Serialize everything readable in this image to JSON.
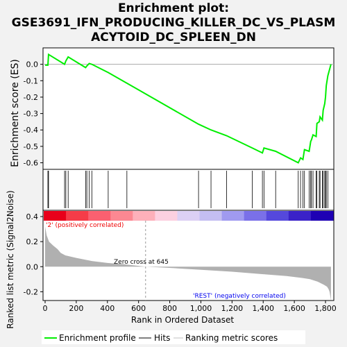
{
  "chart_data": {
    "type": "line",
    "title_lines": [
      "Enrichment plot:",
      "GSE3691_IFN_PRODUCING_KILLER_DC_VS_PLASM",
      "ACYTOID_DC_SPLEEN_DN"
    ],
    "top_panel": {
      "ylabel": "Enrichment score (ES)",
      "ylim": [
        -0.64,
        0.1
      ],
      "yticks": [
        "0.0",
        "-0.1",
        "-0.2",
        "-0.3",
        "-0.4",
        "-0.5",
        "-0.6"
      ],
      "yvalues": [
        0.0,
        -0.1,
        -0.2,
        -0.3,
        -0.4,
        -0.5,
        -0.6
      ],
      "series": [
        {
          "name": "Enrichment profile",
          "color": "#00ee00",
          "x": [
            0,
            18,
            22,
            125,
            133,
            148,
            260,
            268,
            283,
            300,
            405,
            525,
            985,
            1065,
            1165,
            1330,
            1395,
            1405,
            1480,
            1625,
            1640,
            1655,
            1665,
            1695,
            1705,
            1710,
            1720,
            1740,
            1745,
            1760,
            1765,
            1780,
            1785,
            1795,
            1800,
            1805,
            1815,
            1835
          ],
          "y": [
            -0.005,
            -0.005,
            0.06,
            0.0,
            0.02,
            0.045,
            -0.02,
            -0.01,
            0.005,
            0.0,
            -0.05,
            -0.115,
            -0.365,
            -0.4,
            -0.435,
            -0.51,
            -0.54,
            -0.51,
            -0.53,
            -0.6,
            -0.57,
            -0.58,
            -0.52,
            -0.53,
            -0.47,
            -0.46,
            -0.43,
            -0.44,
            -0.36,
            -0.35,
            -0.32,
            -0.34,
            -0.28,
            -0.24,
            -0.2,
            -0.13,
            -0.07,
            0.0
          ]
        }
      ]
    },
    "hits": {
      "color": "#000000",
      "x": [
        18,
        22,
        125,
        133,
        148,
        260,
        268,
        283,
        300,
        405,
        525,
        985,
        1065,
        1165,
        1330,
        1395,
        1405,
        1480,
        1625,
        1640,
        1655,
        1665,
        1695,
        1705,
        1710,
        1720,
        1740,
        1745,
        1760,
        1765,
        1780,
        1785,
        1795,
        1800,
        1805,
        1815
      ]
    },
    "bottom_panel": {
      "ylabel": "Ranked list metric (Signal2Noise)",
      "xlabel": "Rank in Ordered Dataset",
      "ylim": [
        -0.27,
        0.45
      ],
      "yticks": [
        "0.4",
        "0.2",
        "0.0",
        "-0.2"
      ],
      "yvalues": [
        0.4,
        0.2,
        0.0,
        -0.2
      ],
      "xticks": [
        "0",
        "200",
        "400",
        "600",
        "800",
        "1,000",
        "1,200",
        "1,400",
        "1,600",
        "1,800"
      ],
      "xvalues": [
        0,
        200,
        400,
        600,
        800,
        1000,
        1200,
        1400,
        1600,
        1800
      ],
      "xlim": [
        0,
        1840
      ],
      "metric_x": [
        0,
        10,
        25,
        50,
        80,
        100,
        130,
        200,
        300,
        400,
        500,
        645,
        800,
        1000,
        1200,
        1400,
        1550,
        1650,
        1700,
        1750,
        1790,
        1810,
        1820,
        1826,
        1830,
        1835
      ],
      "metric_y": [
        0.32,
        0.25,
        0.2,
        0.17,
        0.14,
        0.11,
        0.09,
        0.07,
        0.045,
        0.03,
        0.02,
        0.0,
        -0.01,
        -0.025,
        -0.04,
        -0.06,
        -0.075,
        -0.09,
        -0.1,
        -0.12,
        -0.145,
        -0.16,
        -0.18,
        -0.2,
        -0.23,
        -0.27
      ],
      "fill_color": "#b0b0b0",
      "zero_cross_label": "Zero cross at 645",
      "zero_cross_x": 645,
      "pos_label": "'2' (positively correlated)",
      "neg_label": "'REST' (negatively correlated)",
      "pos_label_color": "#ee0000",
      "neg_label_color": "#0000ee"
    },
    "heat_colors": [
      "#e8001a",
      "#f53c48",
      "#fa6070",
      "#fc8892",
      "#fdb0ba",
      "#fcd0e0",
      "#dcd0f4",
      "#c4bef2",
      "#a09af0",
      "#7a70e8",
      "#5548dc",
      "#3a22c8",
      "#1e00b4"
    ],
    "legend": [
      {
        "label": "Enrichment profile",
        "color": "#00ee00"
      },
      {
        "label": "Hits",
        "color": "#000000"
      },
      {
        "label": "Ranking metric scores",
        "color": "#c0c0c0"
      }
    ]
  }
}
